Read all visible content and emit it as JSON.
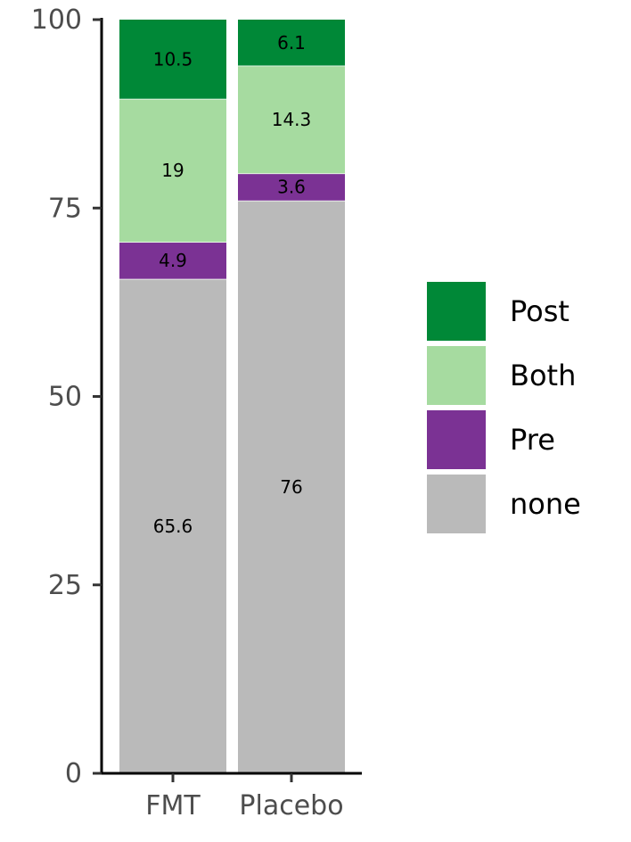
{
  "chart_data": {
    "type": "bar",
    "stacked": true,
    "categories": [
      "FMT",
      "Placebo"
    ],
    "series": [
      {
        "name": "none",
        "color": "#bababa",
        "values": [
          65.6,
          76
        ]
      },
      {
        "name": "Pre",
        "color": "#7b3294",
        "values": [
          4.9,
          3.6
        ]
      },
      {
        "name": "Both",
        "color": "#a6dba0",
        "values": [
          19,
          14.3
        ]
      },
      {
        "name": "Post",
        "color": "#008837",
        "values": [
          10.5,
          6.1
        ]
      }
    ],
    "data_labels": [
      [
        "65.6",
        "76"
      ],
      [
        "4.9",
        "3.6"
      ],
      [
        "19",
        "14.3"
      ],
      [
        "10.5",
        "6.1"
      ]
    ],
    "legend_order": [
      "Post",
      "Both",
      "Pre",
      "none"
    ],
    "ylim": [
      0,
      100
    ],
    "yticks": [
      0,
      25,
      50,
      75,
      100
    ],
    "legend_position": "right",
    "grid": false,
    "title": "",
    "xlabel": "",
    "ylabel": ""
  }
}
